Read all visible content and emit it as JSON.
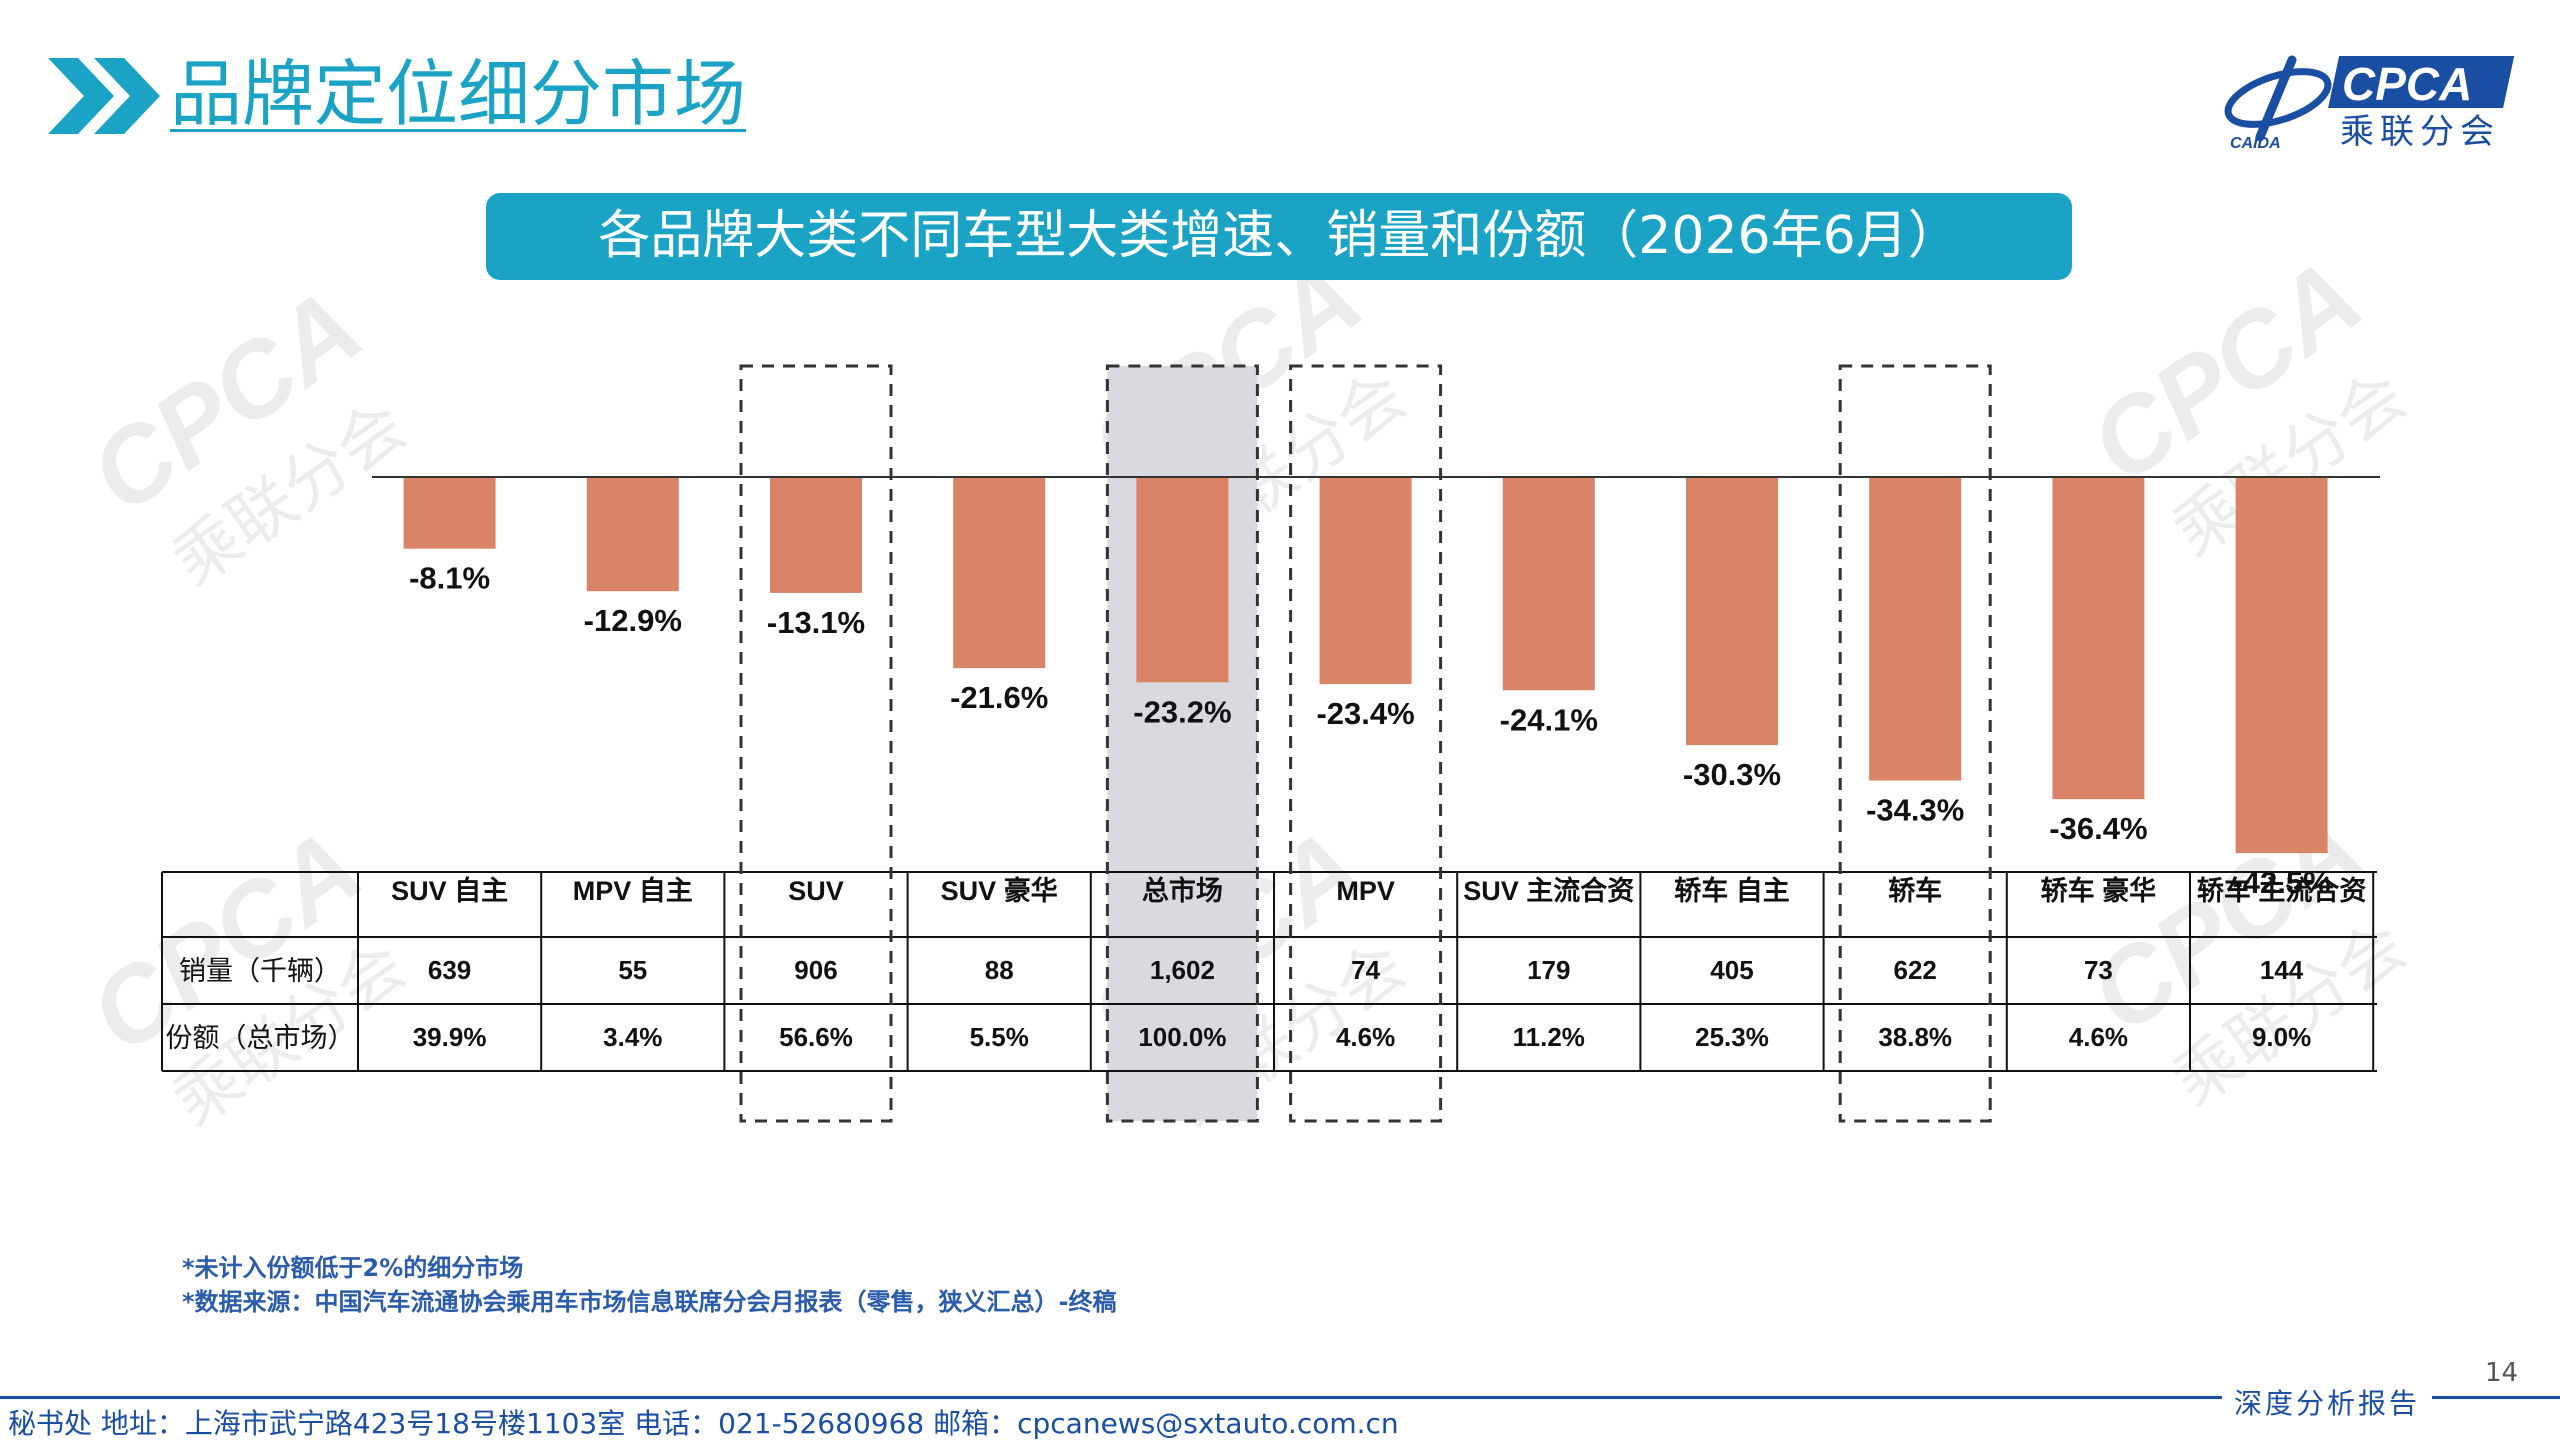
{
  "header": {
    "title": "品牌定位细分市场"
  },
  "logo": {
    "text": "CPCA",
    "cn_text": "乘联分会",
    "sub_text": "CAIDA"
  },
  "banner": {
    "title": "各品牌大类不同车型大类增速、销量和份额（2026年6月）"
  },
  "chart_data": {
    "type": "bar",
    "categories": [
      "SUV 自主",
      "MPV 自主",
      "SUV",
      "SUV 豪华",
      "总市场",
      "MPV",
      "SUV 主流合资",
      "轿车 自主",
      "轿车",
      "轿车 豪华",
      "轿车 主流合资"
    ],
    "values": [
      -8.1,
      -12.9,
      -13.1,
      -21.6,
      -23.2,
      -23.4,
      -24.1,
      -30.3,
      -34.3,
      -36.4,
      -42.5
    ],
    "value_labels": [
      "-8.1%",
      "-12.9%",
      "-13.1%",
      "-21.6%",
      "-23.2%",
      "-23.4%",
      "-24.1%",
      "-30.3%",
      "-34.3%",
      "-36.4%",
      "-42.5%"
    ],
    "unit": "%",
    "bar_color": "#d98467",
    "highlighted_categories": [
      "SUV",
      "总市场",
      "MPV",
      "轿车"
    ],
    "shaded_category": "总市场",
    "shade_color": "#d9d9e0",
    "table": {
      "rows": [
        {
          "label": "销量（千辆）",
          "values": [
            "639",
            "55",
            "906",
            "88",
            "1,602",
            "74",
            "179",
            "405",
            "622",
            "73",
            "144"
          ]
        },
        {
          "label": "份额（总市场）",
          "values": [
            "39.9%",
            "3.4%",
            "56.6%",
            "5.5%",
            "100.0%",
            "4.6%",
            "11.2%",
            "25.3%",
            "38.8%",
            "4.6%",
            "9.0%"
          ]
        }
      ]
    }
  },
  "footnotes": [
    "*未计入份额低于2%的细分市场",
    "*数据来源：中国汽车流通协会乘用车市场信息联席分会月报表（零售，狭义汇总）-终稿"
  ],
  "page_number": "14",
  "footer": {
    "address": "秘书处   地址：上海市武宁路423号18号楼1103室  电话：021-52680968   邮箱：cpcanews@sxtauto.com.cn",
    "report_type": "深度分析报告"
  },
  "colors": {
    "accent": "#1ba3c6",
    "brand_blue": "#1a4ea3",
    "bar": "#d98467"
  }
}
